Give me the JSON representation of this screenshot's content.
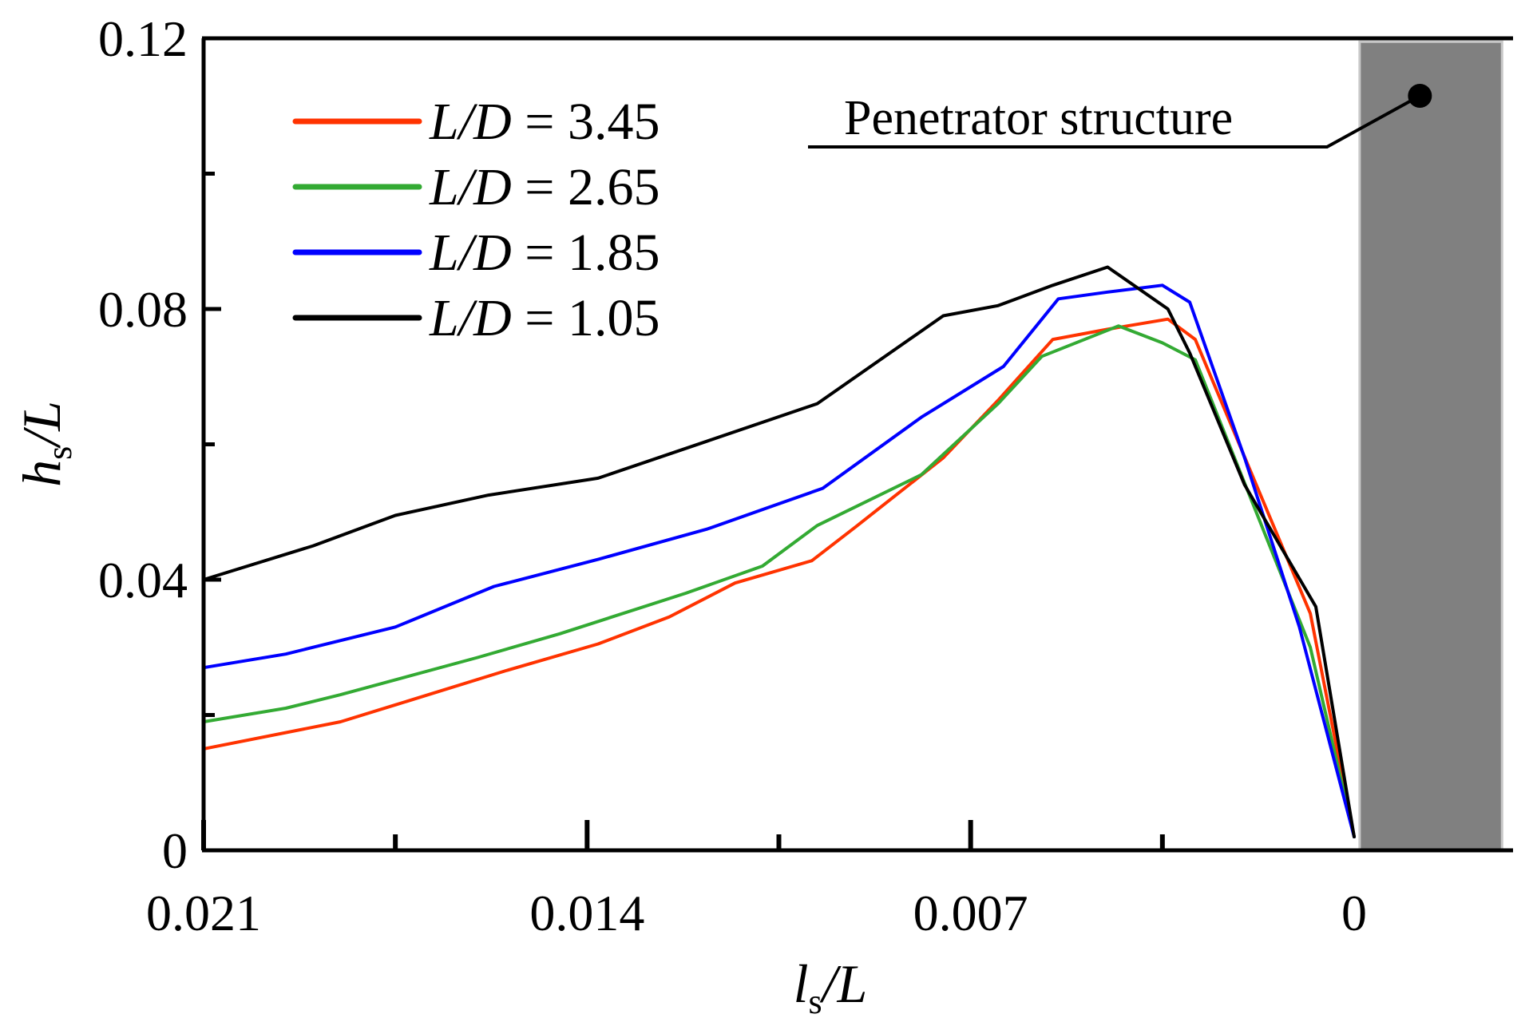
{
  "chart_data": {
    "type": "line",
    "title": "",
    "xlabel": {
      "main": "l",
      "sub": "s",
      "rest": "/L"
    },
    "ylabel": {
      "main": "h",
      "sub": "s",
      "rest": "/L"
    },
    "xlim": [
      0.021,
      -0.0029
    ],
    "ylim": [
      0,
      0.12
    ],
    "x_ticks": [
      {
        "value": 0.021,
        "label": "0.021"
      },
      {
        "value": 0.014,
        "label": "0.014"
      },
      {
        "value": 0.007,
        "label": "0.007"
      },
      {
        "value": 0,
        "label": "0"
      }
    ],
    "x_minor_ticks": [
      0.0175,
      0.0105,
      0.0035
    ],
    "y_ticks": [
      {
        "value": 0,
        "label": "0"
      },
      {
        "value": 0.04,
        "label": "0.04"
      },
      {
        "value": 0.08,
        "label": "0.08"
      },
      {
        "value": 0.12,
        "label": "0.12"
      }
    ],
    "y_minor_ticks": [
      0.02,
      0.06,
      0.1
    ],
    "grid": false,
    "legend_position": "top-left",
    "series": [
      {
        "name": "L/D = 3.45",
        "legend_italic": "L/D",
        "legend_value": "= 3.45",
        "color": "#ff3300",
        "x": [
          0.021,
          0.0185,
          0.0175,
          0.0155,
          0.0138,
          0.0125,
          0.0113,
          0.0099,
          0.0091,
          0.0075,
          0.0065,
          0.0055,
          0.0045,
          0.0034,
          0.0029,
          0.0008,
          0.0
        ],
        "y": [
          0.015,
          0.019,
          0.0215,
          0.0265,
          0.0305,
          0.0345,
          0.0395,
          0.0428,
          0.0478,
          0.058,
          0.0665,
          0.0755,
          0.077,
          0.0785,
          0.0755,
          0.035,
          0.002
        ]
      },
      {
        "name": "L/D = 2.65",
        "legend_italic": "L/D",
        "legend_value": "= 2.65",
        "color": "#33aa33",
        "x": [
          0.021,
          0.0195,
          0.0185,
          0.016,
          0.0145,
          0.0122,
          0.0108,
          0.0098,
          0.0079,
          0.0065,
          0.0057,
          0.0043,
          0.0035,
          0.0029,
          0.0008,
          0.0
        ],
        "y": [
          0.019,
          0.021,
          0.023,
          0.0285,
          0.032,
          0.038,
          0.042,
          0.048,
          0.0555,
          0.066,
          0.073,
          0.0775,
          0.075,
          0.0725,
          0.03,
          0.002
        ]
      },
      {
        "name": "L/D = 1.85",
        "legend_italic": "L/D",
        "legend_value": "= 1.85",
        "color": "#0000ff",
        "x": [
          0.021,
          0.0195,
          0.0175,
          0.0157,
          0.0138,
          0.0118,
          0.0097,
          0.0079,
          0.0064,
          0.0054,
          0.0045,
          0.0035,
          0.003,
          0.002,
          0.001,
          0.0
        ],
        "y": [
          0.027,
          0.029,
          0.033,
          0.039,
          0.043,
          0.0475,
          0.0535,
          0.064,
          0.0715,
          0.0815,
          0.0825,
          0.0835,
          0.081,
          0.058,
          0.033,
          0.002
        ]
      },
      {
        "name": "L/D = 1.05",
        "legend_italic": "L/D",
        "legend_value": "= 1.05",
        "color": "#000000",
        "x": [
          0.021,
          0.019,
          0.0175,
          0.0158,
          0.0138,
          0.0118,
          0.0098,
          0.0075,
          0.0065,
          0.0055,
          0.0045,
          0.0034,
          0.003,
          0.002,
          0.0007,
          0.0
        ],
        "y": [
          0.04,
          0.045,
          0.0495,
          0.0525,
          0.055,
          0.0605,
          0.066,
          0.079,
          0.0805,
          0.0835,
          0.0862,
          0.08,
          0.0735,
          0.054,
          0.036,
          0.002
        ]
      }
    ],
    "annotations": [
      {
        "name": "penetrator-structure",
        "text": "Penetrator structure",
        "x": -0.0012,
        "y": 0.1115
      }
    ],
    "shaded_region": {
      "label": "Penetrator structure",
      "x_from": -0.0001,
      "x_to": -0.0027,
      "y_from": 0,
      "y_to": 0.1195,
      "color": "#808080"
    }
  }
}
